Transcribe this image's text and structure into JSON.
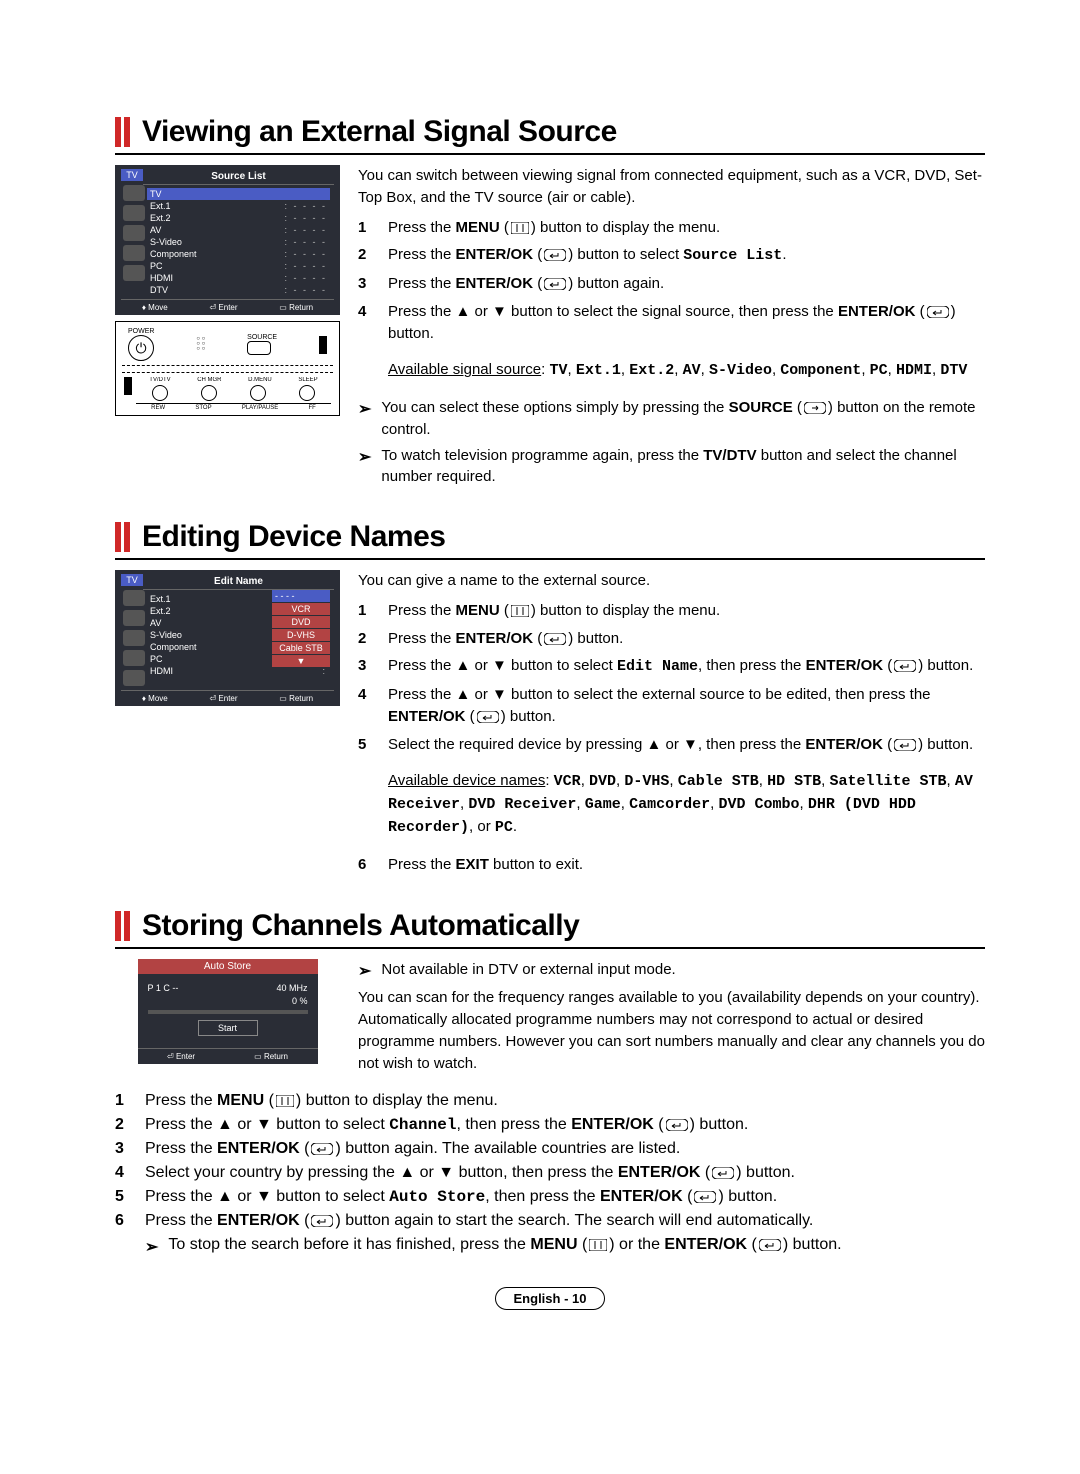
{
  "icons": {
    "menu_svg": "<svg width='18' height='12' viewBox='0 0 18 12'><rect x='0' y='0' width='18' height='12' rx='2' fill='none' stroke='#000'/><line x1='6' y1='2' x2='6' y2='10' stroke='#000'/><line x1='12' y1='2' x2='12' y2='10' stroke='#000'/></svg>",
    "enter_svg": "<svg width='22' height='12' viewBox='0 0 22 12'><rect x='0' y='0' width='22' height='12' rx='5' fill='none' stroke='#000'/><path d='M6 7 L14 7 L14 4' fill='none' stroke='#000'/><path d='M6 7 L9 5 M6 7 L9 9' stroke='#000'/></svg>",
    "source_svg": "<svg width='22' height='12' viewBox='0 0 22 12'><rect x='0' y='0' width='22' height='12' rx='5' fill='none' stroke='#000'/><path d='M8 6 L14 6 M14 6 L12 4 M14 6 L12 8' stroke='#000'/></svg>",
    "up": "▲",
    "down": "▼"
  },
  "section1": {
    "title": "Viewing an External Signal Source",
    "intro": "You can switch between viewing signal from connected equipment, such as a VCR, DVD, Set-Top Box, and the TV source (air or cable).",
    "steps": [
      {
        "n": "1",
        "parts": [
          [
            "Press the "
          ],
          [
            "MENU",
            "bold"
          ],
          [
            " ("
          ],
          [
            "menu",
            "icon"
          ],
          [
            ") button to display the menu."
          ]
        ]
      },
      {
        "n": "2",
        "parts": [
          [
            "Press the "
          ],
          [
            "ENTER/OK",
            "bold"
          ],
          [
            " ("
          ],
          [
            "enter",
            "icon"
          ],
          [
            ") button to select "
          ],
          [
            "Source List",
            "mono"
          ],
          [
            "."
          ]
        ]
      },
      {
        "n": "3",
        "parts": [
          [
            "Press the "
          ],
          [
            "ENTER/OK",
            "bold"
          ],
          [
            " ("
          ],
          [
            "enter",
            "icon"
          ],
          [
            ") button again."
          ]
        ]
      },
      {
        "n": "4",
        "parts": [
          [
            "Press the ▲ or ▼ button to select the signal source, then press the "
          ],
          [
            "ENTER/OK",
            "bold"
          ],
          [
            " ("
          ],
          [
            "enter",
            "icon"
          ],
          [
            ") button."
          ]
        ]
      }
    ],
    "avail_label": "Available signal source",
    "avail_sources": [
      "TV",
      "Ext.1",
      "Ext.2",
      "AV",
      "S-Video",
      "Component",
      "PC",
      "HDMI",
      "DTV"
    ],
    "notes": [
      [
        [
          "You can select these options simply by pressing the "
        ],
        [
          "SOURCE",
          "bold"
        ],
        [
          " ("
        ],
        [
          "source",
          "icon"
        ],
        [
          ") button on the remote control."
        ]
      ],
      [
        [
          "To watch television programme again, press the "
        ],
        [
          "TV/DTV",
          "bold"
        ],
        [
          " button and select the channel number required."
        ]
      ]
    ],
    "osd": {
      "tv_label": "TV",
      "title": "Source List",
      "rows": [
        {
          "label": "TV",
          "val": "",
          "selected": true
        },
        {
          "label": "Ext.1",
          "val": ": - - - -"
        },
        {
          "label": "Ext.2",
          "val": ": - - - -"
        },
        {
          "label": "AV",
          "val": ": - - - -"
        },
        {
          "label": "S-Video",
          "val": ": - - - -"
        },
        {
          "label": "Component",
          "val": ": - - - -"
        },
        {
          "label": "PC",
          "val": ": - - - -"
        },
        {
          "label": "HDMI",
          "val": ": - - - -"
        },
        {
          "label": "DTV",
          "val": ": - - - -"
        }
      ],
      "foot": [
        "♦ Move",
        "⏎ Enter",
        "▭ Return"
      ]
    },
    "remote": {
      "top_labels": [
        "POWER",
        "SOURCE"
      ],
      "mid_labels": [
        "TV/DTV",
        "CH MGR",
        "D.MENU",
        "SLEEP"
      ],
      "bot_labels": [
        "REW",
        "STOP",
        "PLAY/PAUSE",
        "FF"
      ]
    }
  },
  "section2": {
    "title": "Editing Device Names",
    "intro": "You can give a name to the external source.",
    "steps": [
      {
        "n": "1",
        "parts": [
          [
            "Press the "
          ],
          [
            "MENU",
            "bold"
          ],
          [
            " ("
          ],
          [
            "menu",
            "icon"
          ],
          [
            ") button to display the menu."
          ]
        ]
      },
      {
        "n": "2",
        "parts": [
          [
            "Press the "
          ],
          [
            "ENTER/OK",
            "bold"
          ],
          [
            " ("
          ],
          [
            "enter",
            "icon"
          ],
          [
            ") button."
          ]
        ]
      },
      {
        "n": "3",
        "parts": [
          [
            "Press the ▲ or ▼ button to select "
          ],
          [
            "Edit Name",
            "mono"
          ],
          [
            ", then press the "
          ],
          [
            "ENTER/OK",
            "bold"
          ],
          [
            " ("
          ],
          [
            "enter",
            "icon"
          ],
          [
            ") button."
          ]
        ]
      },
      {
        "n": "4",
        "parts": [
          [
            "Press the ▲ or ▼ button to select the external source to be edited, then press the "
          ],
          [
            "ENTER/OK",
            "bold"
          ],
          [
            " ("
          ],
          [
            "enter",
            "icon"
          ],
          [
            ") button."
          ]
        ]
      },
      {
        "n": "5",
        "parts": [
          [
            "Select the required device by pressing ▲ or ▼, then press the "
          ],
          [
            "ENTER/OK",
            "bold"
          ],
          [
            " ("
          ],
          [
            "enter",
            "icon"
          ],
          [
            ") button."
          ]
        ]
      }
    ],
    "avail_label": "Available device names",
    "avail_names": [
      "VCR",
      "DVD",
      "D-VHS",
      "Cable STB",
      "HD STB",
      "Satellite STB",
      "AV Receiver",
      "DVD Receiver",
      "Game",
      "Camcorder",
      "DVD Combo",
      "DHR (DVD HDD Recorder)"
    ],
    "avail_suffix": ", or ",
    "avail_last": "PC",
    "step6": {
      "n": "6",
      "parts": [
        [
          "Press the "
        ],
        [
          "EXIT",
          "bold"
        ],
        [
          " button to exit."
        ]
      ]
    },
    "osd": {
      "tv_label": "TV",
      "title": "Edit Name",
      "rows": [
        {
          "label": "Ext.1",
          "val": ":"
        },
        {
          "label": "Ext.2",
          "val": ":"
        },
        {
          "label": "AV",
          "val": ":"
        },
        {
          "label": "S-Video",
          "val": ":"
        },
        {
          "label": "Component",
          "val": ":"
        },
        {
          "label": "PC",
          "val": ":"
        },
        {
          "label": "HDMI",
          "val": ":"
        }
      ],
      "popup": [
        "- - - -",
        "VCR",
        "DVD",
        "D-VHS",
        "Cable STB"
      ],
      "popup_arrow": "▼",
      "foot": [
        "♦ Move",
        "⏎ Enter",
        "▭ Return"
      ]
    }
  },
  "section3": {
    "title": "Storing Channels Automatically",
    "top_note": "Not available in DTV or external input mode.",
    "intro": "You can scan for the frequency ranges available to you (availability depends on your country). Automatically allocated programme numbers may not correspond to actual or desired programme numbers. However you can sort numbers manually and clear any channels you do not wish to watch.",
    "steps": [
      {
        "n": "1",
        "parts": [
          [
            "Press the "
          ],
          [
            "MENU",
            "bold"
          ],
          [
            " ("
          ],
          [
            "menu",
            "icon"
          ],
          [
            ") button to display the menu."
          ]
        ]
      },
      {
        "n": "2",
        "parts": [
          [
            "Press the ▲ or ▼ button to select "
          ],
          [
            "Channel",
            "mono"
          ],
          [
            ", then press the "
          ],
          [
            "ENTER/OK",
            "bold"
          ],
          [
            " ("
          ],
          [
            "enter",
            "icon"
          ],
          [
            ") button."
          ]
        ]
      },
      {
        "n": "3",
        "parts": [
          [
            "Press the "
          ],
          [
            "ENTER/OK",
            "bold"
          ],
          [
            " ("
          ],
          [
            "enter",
            "icon"
          ],
          [
            ") button again. The available countries are listed."
          ]
        ]
      },
      {
        "n": "4",
        "parts": [
          [
            "Select your country by pressing the ▲ or ▼ button, then press the "
          ],
          [
            "ENTER/OK",
            "bold"
          ],
          [
            " ("
          ],
          [
            "enter",
            "icon"
          ],
          [
            ") button."
          ]
        ]
      },
      {
        "n": "5",
        "parts": [
          [
            "Press the ▲ or ▼ button to select "
          ],
          [
            "Auto Store",
            "mono"
          ],
          [
            ", then press the "
          ],
          [
            "ENTER/OK",
            "bold"
          ],
          [
            " ("
          ],
          [
            "enter",
            "icon"
          ],
          [
            ") button."
          ]
        ]
      },
      {
        "n": "6",
        "parts": [
          [
            "Press the "
          ],
          [
            "ENTER/OK",
            "bold"
          ],
          [
            " ("
          ],
          [
            "enter",
            "icon"
          ],
          [
            ") button again to start the search. The search will end automatically."
          ]
        ]
      }
    ],
    "sub_note": [
      [
        "To stop the search before it has finished, press the "
      ],
      [
        "MENU",
        "bold"
      ],
      [
        " ("
      ],
      [
        "menu",
        "icon"
      ],
      [
        ") or the "
      ],
      [
        "ENTER/OK",
        "bold"
      ],
      [
        " ("
      ],
      [
        "enter",
        "icon"
      ],
      [
        ") button."
      ]
    ],
    "osd": {
      "title": "Auto Store",
      "line1_left": "P   1    C  --",
      "line1_right": "40 MHz",
      "line2_right": "0 %",
      "start": "Start",
      "foot": [
        "⏎ Enter",
        "▭ Return"
      ]
    }
  },
  "footer": "English - 10"
}
